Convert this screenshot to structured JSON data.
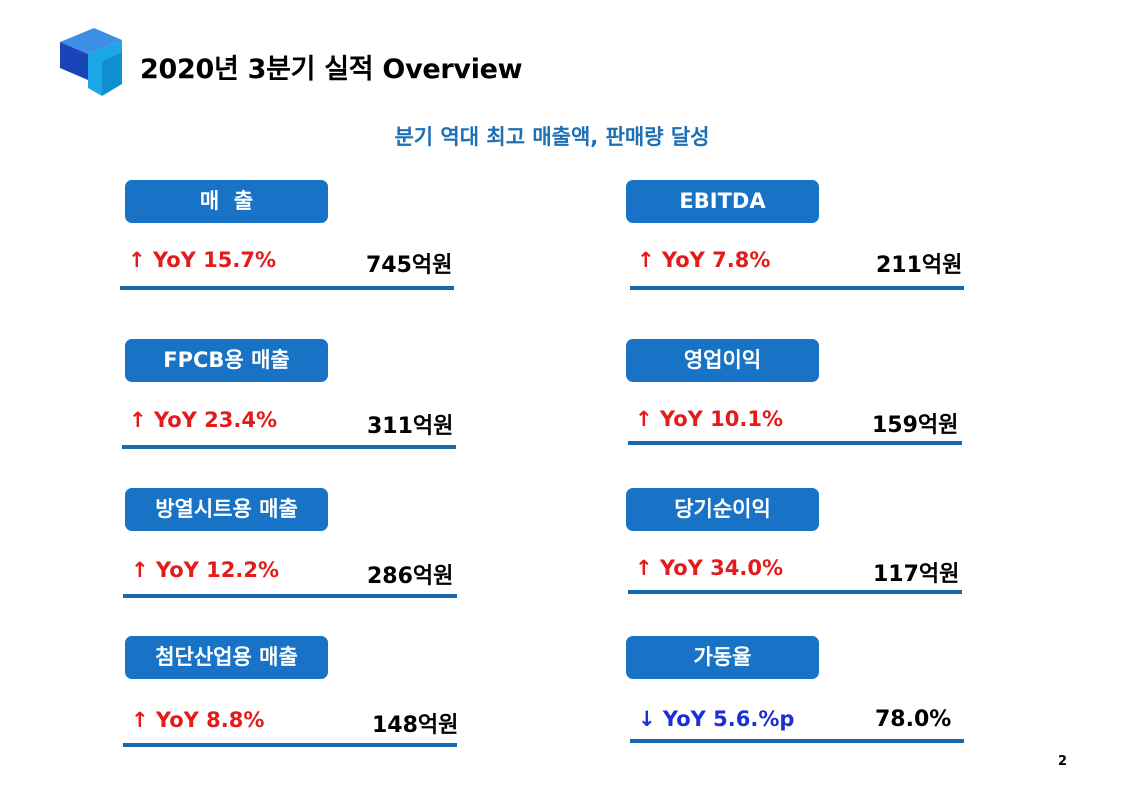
{
  "slide": {
    "title": "2020년 3분기 실적 Overview",
    "subtitle": "분기 역대 최고 매출액, 판매량 달성",
    "page_number": "2"
  },
  "colors": {
    "label_bg": "#1873c6",
    "increase": "#e41b1b",
    "decrease": "#1b2fd6",
    "subtitle": "#1f6fb5",
    "rule": "#1868b0"
  },
  "metrics": [
    {
      "label": "매  출",
      "arrow": "↑",
      "change": "YoY 15.7%",
      "value": "745억원",
      "direction": "up"
    },
    {
      "label": "EBITDA",
      "arrow": "↑",
      "change": "YoY 7.8%",
      "value": "211억원",
      "direction": "up"
    },
    {
      "label": "FPCB용 매출",
      "arrow": "↑",
      "change": "YoY 23.4%",
      "value": "311억원",
      "direction": "up"
    },
    {
      "label": "영업이익",
      "arrow": "↑",
      "change": "YoY 10.1%",
      "value": "159억원",
      "direction": "up"
    },
    {
      "label": "방열시트용 매출",
      "arrow": "↑",
      "change": "YoY 12.2%",
      "value": "286억원",
      "direction": "up"
    },
    {
      "label": "당기순이익",
      "arrow": "↑",
      "change": "YoY 34.0%",
      "value": "117억원",
      "direction": "up"
    },
    {
      "label": "첨단산업용 매출",
      "arrow": "↑",
      "change": "YoY 8.8%",
      "value": "148억원",
      "direction": "up"
    },
    {
      "label": "가동율",
      "arrow": "↓",
      "change": "YoY 5.6.%p",
      "value": "78.0%",
      "direction": "down"
    }
  ]
}
